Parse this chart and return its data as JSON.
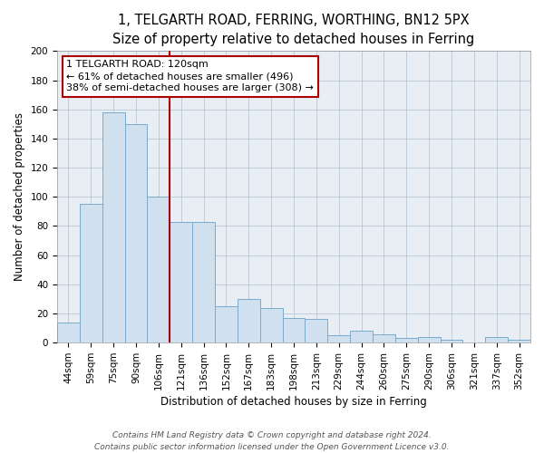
{
  "title": "1, TELGARTH ROAD, FERRING, WORTHING, BN12 5PX",
  "subtitle": "Size of property relative to detached houses in Ferring",
  "xlabel": "Distribution of detached houses by size in Ferring",
  "ylabel": "Number of detached properties",
  "categories": [
    "44sqm",
    "59sqm",
    "75sqm",
    "90sqm",
    "106sqm",
    "121sqm",
    "136sqm",
    "152sqm",
    "167sqm",
    "183sqm",
    "198sqm",
    "213sqm",
    "229sqm",
    "244sqm",
    "260sqm",
    "275sqm",
    "290sqm",
    "306sqm",
    "321sqm",
    "337sqm",
    "352sqm"
  ],
  "values": [
    14,
    95,
    158,
    150,
    100,
    83,
    83,
    25,
    30,
    24,
    17,
    16,
    5,
    8,
    6,
    3,
    4,
    2,
    0,
    4,
    2
  ],
  "bar_color": "#d0e0ee",
  "bar_edge_color": "#7aaaca",
  "vline_x_index": 5,
  "vline_color": "#aa0000",
  "plot_bg_color": "#e8eef4",
  "ylim": [
    0,
    200
  ],
  "yticks": [
    0,
    20,
    40,
    60,
    80,
    100,
    120,
    140,
    160,
    180,
    200
  ],
  "annotation_title": "1 TELGARTH ROAD: 120sqm",
  "annotation_line1": "← 61% of detached houses are smaller (496)",
  "annotation_line2": "38% of semi-detached houses are larger (308) →",
  "annotation_box_color": "#ffffff",
  "annotation_box_edge": "#aa0000",
  "footer_line1": "Contains HM Land Registry data © Crown copyright and database right 2024.",
  "footer_line2": "Contains public sector information licensed under the Open Government Licence v3.0.",
  "title_fontsize": 10.5,
  "subtitle_fontsize": 9.5,
  "axis_label_fontsize": 8.5,
  "tick_fontsize": 7.5,
  "annotation_fontsize": 8,
  "footer_fontsize": 6.5
}
